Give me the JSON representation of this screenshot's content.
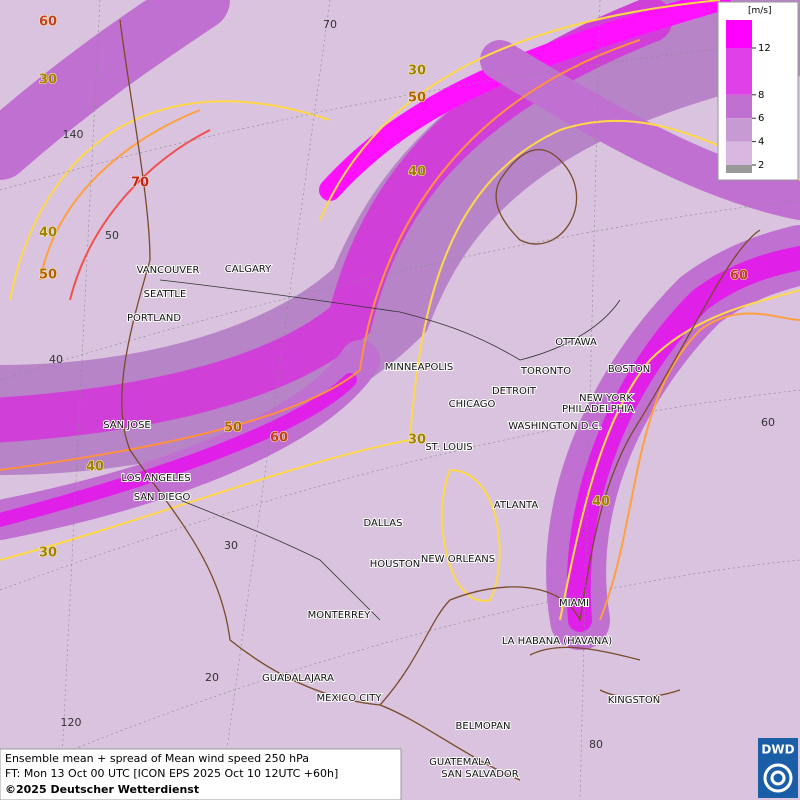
{
  "map": {
    "title_box": {
      "lines": [
        "Ensemble mean + spread of Mean wind speed 250 hPa",
        "FT: Mon 13 Oct 00 UTC [ICON EPS 2025 Oct 10 12UTC +60h]",
        "©2025 Deutscher Wetterdienst"
      ]
    },
    "legend": {
      "unit": "[m/s]",
      "ticks": [
        2,
        4,
        6,
        8,
        12
      ]
    },
    "logo": "DWD",
    "cities": [
      "VANCOUVER",
      "CALGARY",
      "SEATTLE",
      "PORTLAND",
      "SAN JOSE",
      "LOS ANGELES",
      "SAN DIEGO",
      "DALLAS",
      "HOUSTON",
      "NEW ORLEANS",
      "MONTERREY",
      "GUADALAJARA",
      "MEXICO CITY",
      "BELMOPAN",
      "GUATEMALA",
      "SAN SALVADOR",
      "MINNEAPOLIS",
      "CHICAGO",
      "DETROIT",
      "TORONTO",
      "OTTAWA",
      "BOSTON",
      "NEW YORK",
      "PHILADELPHIA",
      "WASHINGTON D.C.",
      "ST. LOUIS",
      "ATLANTA",
      "MIAMI",
      "LA HABANA (HAVANA)",
      "KINGSTON"
    ],
    "contour_labels": [
      60,
      30,
      70,
      40,
      50,
      30,
      50,
      40,
      60,
      50,
      60,
      30,
      40,
      40,
      30
    ],
    "graticule_labels": [
      70,
      140,
      50,
      40,
      60,
      30,
      20,
      120,
      80
    ]
  }
}
